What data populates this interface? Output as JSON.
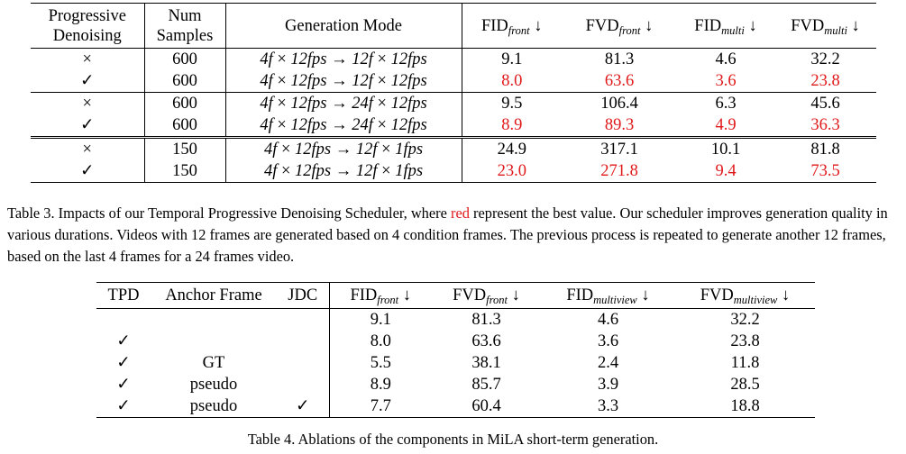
{
  "table3": {
    "headers": {
      "progressive_l1": "Progressive",
      "progressive_l2": "Denoising",
      "num_l1": "Num",
      "num_l2": "Samples",
      "mode": "Generation Mode",
      "fid_front": "FID",
      "fid_front_sub": "front",
      "fvd_front": "FVD",
      "fvd_front_sub": "front",
      "fid_multi": "FID",
      "fid_multi_sub": "multi",
      "fvd_multi": "FVD",
      "fvd_multi_sub": "multi",
      "arrow": "↓"
    },
    "rows": [
      {
        "pd": "×",
        "num": "600",
        "mode": [
          "4f",
          "12fps",
          "12f",
          "12fps"
        ],
        "fid_front": "9.1",
        "fvd_front": "81.3",
        "fid_multi": "4.6",
        "fvd_multi": "32.2"
      },
      {
        "pd": "✓",
        "num": "600",
        "mode": [
          "4f",
          "12fps",
          "12f",
          "12fps"
        ],
        "fid_front": "8.0",
        "fvd_front": "63.6",
        "fid_multi": "3.6",
        "fvd_multi": "23.8"
      },
      {
        "pd": "×",
        "num": "600",
        "mode": [
          "4f",
          "12fps",
          "24f",
          "12fps"
        ],
        "fid_front": "9.5",
        "fvd_front": "106.4",
        "fid_multi": "6.3",
        "fvd_multi": "45.6"
      },
      {
        "pd": "✓",
        "num": "600",
        "mode": [
          "4f",
          "12fps",
          "24f",
          "12fps"
        ],
        "fid_front": "8.9",
        "fvd_front": "89.3",
        "fid_multi": "4.9",
        "fvd_multi": "36.3"
      },
      {
        "pd": "×",
        "num": "150",
        "mode": [
          "4f",
          "12fps",
          "12f",
          "1fps"
        ],
        "fid_front": "24.9",
        "fvd_front": "317.1",
        "fid_multi": "10.1",
        "fvd_multi": "81.8"
      },
      {
        "pd": "✓",
        "num": "150",
        "mode": [
          "4f",
          "12fps",
          "12f",
          "1fps"
        ],
        "fid_front": "23.0",
        "fvd_front": "271.8",
        "fid_multi": "9.4",
        "fvd_multi": "73.5"
      }
    ],
    "best_color": "#e0191b"
  },
  "caption3": {
    "prefix": "Table 3. Impacts of our Temporal Progressive Denoising Scheduler, where ",
    "red_word": "red",
    "suffix": " represent the best value. Our scheduler improves generation quality in various durations. Videos with 12 frames are generated based on 4 condition frames. The previous process is repeated to generate another 12 frames, based on the last 4 frames for a 24 frames video."
  },
  "table4": {
    "headers": {
      "tpd": "TPD",
      "anchor": "Anchor Frame",
      "jdc": "JDC",
      "fid_front": "FID",
      "fid_front_sub": "front",
      "fvd_front": "FVD",
      "fvd_front_sub": "front",
      "fid_mv": "FID",
      "fid_mv_sub": "multiview",
      "fvd_mv": "FVD",
      "fvd_mv_sub": "multiview",
      "arrow": "↓"
    },
    "rows": [
      {
        "tpd": "",
        "anchor": "",
        "jdc": "",
        "fid_front": "9.1",
        "fvd_front": "81.3",
        "fid_mv": "4.6",
        "fvd_mv": "32.2"
      },
      {
        "tpd": "✓",
        "anchor": "",
        "jdc": "",
        "fid_front": "8.0",
        "fvd_front": "63.6",
        "fid_mv": "3.6",
        "fvd_mv": "23.8"
      },
      {
        "tpd": "✓",
        "anchor": "GT",
        "jdc": "",
        "fid_front": "5.5",
        "fvd_front": "38.1",
        "fid_mv": "2.4",
        "fvd_mv": "11.8"
      },
      {
        "tpd": "✓",
        "anchor": "pseudo",
        "jdc": "",
        "fid_front": "8.9",
        "fvd_front": "85.7",
        "fid_mv": "3.9",
        "fvd_mv": "28.5"
      },
      {
        "tpd": "✓",
        "anchor": "pseudo",
        "jdc": "✓",
        "fid_front": "7.7",
        "fvd_front": "60.4",
        "fid_mv": "3.3",
        "fvd_mv": "18.8"
      }
    ]
  },
  "caption4": "Table 4. Ablations of the components in MiLA short-term generation."
}
